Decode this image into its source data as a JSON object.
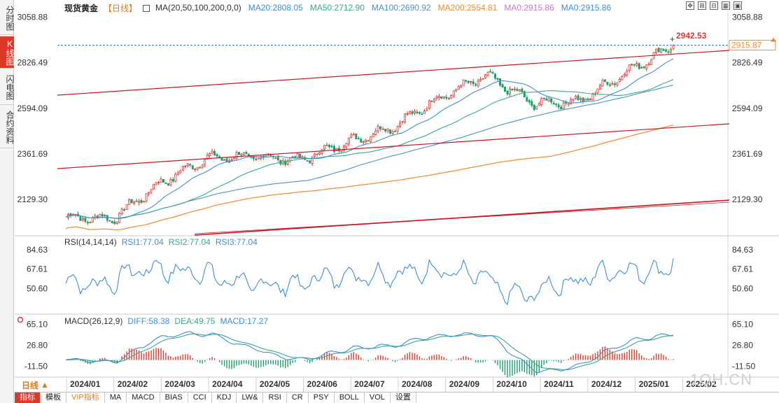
{
  "left_tabs": [
    {
      "label": "分时图",
      "active": false
    },
    {
      "label": "K线图",
      "active": true
    },
    {
      "label": "闪电图",
      "active": false
    },
    {
      "label": "合约资料",
      "active": false
    }
  ],
  "legend": {
    "title": "现货黄金",
    "period": "【日线】",
    "items": [
      {
        "text": "MA(20,50,100,200,0,0)",
        "color": "#333333"
      },
      {
        "text": "MA20:2808.05",
        "color": "#3d8fd8"
      },
      {
        "text": "MA50:2712.90",
        "color": "#3aa889"
      },
      {
        "text": "MA100:2690.92",
        "color": "#4a90c8"
      },
      {
        "text": "MA200:2554.81",
        "color": "#ef8a2a"
      },
      {
        "text": "MA0:2915.86",
        "color": "#c878c8"
      },
      {
        "text": "MA0:2915.86",
        "color": "#3d8fd8"
      }
    ]
  },
  "rsi_legend": [
    {
      "text": "RSI(14,14,14)",
      "color": "#333333"
    },
    {
      "text": "RSI1:77.04",
      "color": "#3d8fd8"
    },
    {
      "text": "RSI2:77.04",
      "color": "#3aa889"
    },
    {
      "text": "RSI3:77.04",
      "color": "#3d8fd8"
    }
  ],
  "macd_legend": [
    {
      "text": "MACD(26,12,9)",
      "color": "#333333"
    },
    {
      "text": "DIFF:58.38",
      "color": "#3d8fd8"
    },
    {
      "text": "DEA:49.75",
      "color": "#3aa889"
    },
    {
      "text": "MACD:17.27",
      "color": "#3d8fd8"
    }
  ],
  "price_labels": {
    "high_marker": "2942.53",
    "current_price": "2915.87"
  },
  "period_button": {
    "label": "日线",
    "icon": "triangle-up-icon"
  },
  "bottom_tabs": [
    {
      "label": "指标",
      "active": true
    },
    {
      "label": "模板",
      "active": false
    },
    {
      "label": "VIP指标",
      "active": false,
      "vip": true
    },
    {
      "label": "MA",
      "active": false
    },
    {
      "label": "MACD",
      "active": false
    },
    {
      "label": "BIAS",
      "active": false
    },
    {
      "label": "CCI",
      "active": false
    },
    {
      "label": "KDJ",
      "active": false
    },
    {
      "label": "LW&",
      "active": false
    },
    {
      "label": "RSI",
      "active": false
    },
    {
      "label": "CR",
      "active": false
    },
    {
      "label": "PSY",
      "active": false
    },
    {
      "label": "BOLL",
      "active": false
    },
    {
      "label": "VOL",
      "active": false
    },
    {
      "label": "设置",
      "active": false
    }
  ],
  "watermark": "1QH.CN",
  "colors": {
    "up": "#e0372b",
    "down": "#1f9e6a",
    "ma20": "#3d8fd8",
    "ma50": "#3aa889",
    "ma100": "#4a90c8",
    "ma200": "#ef8a2a",
    "channel": "#c8141e",
    "axis": "#777777",
    "grid": "#e6e6e6"
  },
  "chart_data": {
    "type": "candlestick",
    "instrument": "现货黄金",
    "interval": "日线",
    "x_ticks": [
      "2024/01",
      "2024/02",
      "2024/03",
      "2024/04",
      "2024/05",
      "2024/06",
      "2024/07",
      "2024/08",
      "2024/09",
      "2024/10",
      "2024/11",
      "2024/12",
      "2025/01",
      "2025/02"
    ],
    "price_ticks": [
      "3058.88",
      "2826.49",
      "2594.09",
      "2361.69",
      "2129.30"
    ],
    "price_ylim": [
      1948,
      3075
    ],
    "close_series": [
      {
        "date": "2024/01",
        "value": 2040
      },
      {
        "date": "2024/02",
        "value": 2030
      },
      {
        "date": "2024/03",
        "value": 2210
      },
      {
        "date": "2024/04",
        "value": 2340
      },
      {
        "date": "2024/05",
        "value": 2350
      },
      {
        "date": "2024/06",
        "value": 2330
      },
      {
        "date": "2024/07",
        "value": 2420
      },
      {
        "date": "2024/08",
        "value": 2500
      },
      {
        "date": "2024/09",
        "value": 2650
      },
      {
        "date": "2024/10",
        "value": 2760
      },
      {
        "date": "2024/11",
        "value": 2620
      },
      {
        "date": "2024/12",
        "value": 2630
      },
      {
        "date": "2025/01",
        "value": 2780
      },
      {
        "date": "2025/02",
        "value": 2915.87
      }
    ],
    "ma_latest": {
      "MA20": 2808.05,
      "MA50": 2712.9,
      "MA100": 2690.92,
      "MA200": 2554.81
    },
    "last_price": 2915.87,
    "period_high": 2942.53,
    "rsi": {
      "ticks": [
        "84.63",
        "67.61",
        "50.60"
      ],
      "ylim": [
        30,
        95
      ],
      "latest": {
        "RSI1": 77.04,
        "RSI2": 77.04,
        "RSI3": 77.04
      }
    },
    "macd": {
      "ticks": [
        "65.10",
        "26.80",
        "-11.50"
      ],
      "ylim": [
        -30,
        80
      ],
      "latest": {
        "DIFF": 58.38,
        "DEA": 49.75,
        "MACD": 17.27
      }
    },
    "grid": false
  }
}
